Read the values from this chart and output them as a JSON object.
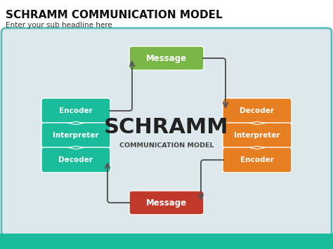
{
  "title": "SCHRAMM COMMUNICATION MODEL",
  "subtitle": "Enter your sub headline here",
  "bg_color": "#ffffff",
  "panel_color": "#dde8ec",
  "panel_border_color": "#5bbcb8",
  "center_text_main": "SCHRAMM",
  "center_text_sub": "COMMUNICATION MODEL",
  "top_message_text": "Message",
  "top_message_color": "#7ab648",
  "bottom_message_text": "Message",
  "bottom_message_color": "#c0392b",
  "left_boxes": [
    "Encoder",
    "Interpreter",
    "Decoder"
  ],
  "left_box_color": "#1abc9c",
  "right_boxes": [
    "Decoder",
    "Interpreter",
    "Encoder"
  ],
  "right_box_color": "#e67e22",
  "arrow_color": "#555555",
  "text_color": "#ffffff",
  "bottom_bar_color": "#1abc9c"
}
